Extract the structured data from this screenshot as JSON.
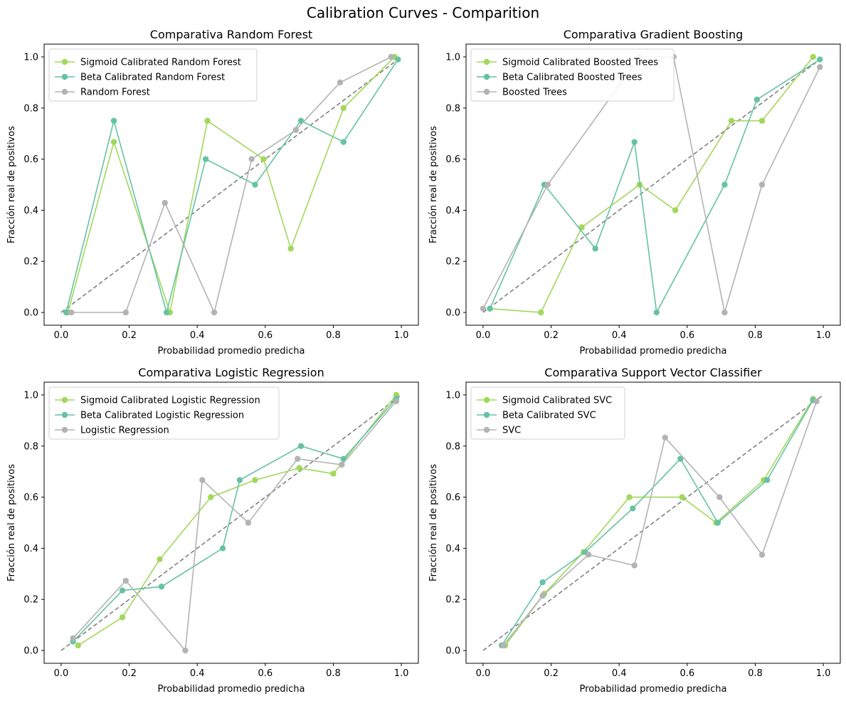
{
  "figure": {
    "title": "Calibration Curves - Comparition"
  },
  "chart_data": [
    {
      "type": "line",
      "title": "Comparativa Random Forest",
      "xlabel": "Probabilidad promedio predicha",
      "ylabel": "Fracción real de positivos",
      "xlim": [
        -0.05,
        1.05
      ],
      "ylim": [
        -0.05,
        1.05
      ],
      "xticks": [
        "0.0",
        "0.2",
        "0.4",
        "0.6",
        "0.8",
        "1.0"
      ],
      "yticks": [
        "0.0",
        "0.2",
        "0.4",
        "0.6",
        "0.8",
        "1.0"
      ],
      "legend": "upper-left",
      "series": [
        {
          "name": "Sigmoid Calibrated Random Forest",
          "color": "#a1d85a",
          "x": [
            0.02,
            0.155,
            0.32,
            0.43,
            0.595,
            0.675,
            0.83,
            0.98
          ],
          "y": [
            0.0,
            0.667,
            0.0,
            0.75,
            0.6,
            0.25,
            0.8,
            1.0
          ]
        },
        {
          "name": "Beta Calibrated Random Forest",
          "color": "#66c2a5",
          "x": [
            0.015,
            0.155,
            0.31,
            0.425,
            0.57,
            0.705,
            0.83,
            0.99
          ],
          "y": [
            0.0,
            0.75,
            0.0,
            0.6,
            0.5,
            0.75,
            0.667,
            0.99
          ]
        },
        {
          "name": "Random Forest",
          "color": "#b3b3b3",
          "x": [
            0.03,
            0.19,
            0.305,
            0.45,
            0.56,
            0.69,
            0.82,
            0.97
          ],
          "y": [
            0.0,
            0.0,
            0.429,
            0.0,
            0.6,
            0.714,
            0.9,
            1.0
          ]
        }
      ]
    },
    {
      "type": "line",
      "title": "Comparativa Gradient Boosting",
      "xlabel": "Probabilidad promedio predicha",
      "ylabel": "Fracción real de positivos",
      "xlim": [
        -0.05,
        1.05
      ],
      "ylim": [
        -0.05,
        1.05
      ],
      "xticks": [
        "0.0",
        "0.2",
        "0.4",
        "0.6",
        "0.8",
        "1.0"
      ],
      "yticks": [
        "0.0",
        "0.2",
        "0.4",
        "0.6",
        "0.8",
        "1.0"
      ],
      "legend": "upper-left",
      "series": [
        {
          "name": "Sigmoid Calibrated Boosted Trees",
          "color": "#a1d85a",
          "x": [
            0.02,
            0.17,
            0.29,
            0.46,
            0.565,
            0.73,
            0.82,
            0.97
          ],
          "y": [
            0.015,
            0.0,
            0.333,
            0.5,
            0.4,
            0.75,
            0.75,
            1.0
          ]
        },
        {
          "name": "Beta Calibrated Boosted Trees",
          "color": "#66c2a5",
          "x": [
            0.02,
            0.18,
            0.33,
            0.445,
            0.51,
            0.71,
            0.805,
            0.99
          ],
          "y": [
            0.015,
            0.5,
            0.25,
            0.667,
            0.0,
            0.5,
            0.833,
            0.99
          ]
        },
        {
          "name": "Boosted Trees",
          "color": "#b3b3b3",
          "x": [
            0.0,
            0.19,
            0.46,
            0.56,
            0.71,
            0.82,
            0.99
          ],
          "y": [
            0.015,
            0.5,
            1.0,
            1.0,
            0.0,
            0.5,
            0.96
          ]
        }
      ]
    },
    {
      "type": "line",
      "title": "Comparativa Logistic Regression",
      "xlabel": "Probabilidad promedio predicha",
      "ylabel": "Fracción real de positivos",
      "xlim": [
        -0.05,
        1.05
      ],
      "ylim": [
        -0.05,
        1.05
      ],
      "xticks": [
        "0.0",
        "0.2",
        "0.4",
        "0.6",
        "0.8",
        "1.0"
      ],
      "yticks": [
        "0.0",
        "0.2",
        "0.4",
        "0.6",
        "0.8",
        "1.0"
      ],
      "legend": "upper-left",
      "series": [
        {
          "name": "Sigmoid Calibrated Logistic Regression",
          "color": "#a1d85a",
          "x": [
            0.05,
            0.18,
            0.29,
            0.44,
            0.57,
            0.7,
            0.8,
            0.985
          ],
          "y": [
            0.02,
            0.13,
            0.357,
            0.6,
            0.667,
            0.714,
            0.692,
            1.0
          ]
        },
        {
          "name": "Beta Calibrated Logistic Regression",
          "color": "#66c2a5",
          "x": [
            0.035,
            0.18,
            0.295,
            0.475,
            0.525,
            0.705,
            0.83,
            0.985
          ],
          "y": [
            0.035,
            0.235,
            0.25,
            0.4,
            0.667,
            0.8,
            0.75,
            0.985
          ]
        },
        {
          "name": "Logistic Regression",
          "color": "#b3b3b3",
          "x": [
            0.035,
            0.19,
            0.365,
            0.415,
            0.55,
            0.695,
            0.825,
            0.985
          ],
          "y": [
            0.048,
            0.273,
            0.0,
            0.667,
            0.5,
            0.75,
            0.727,
            0.975
          ]
        }
      ]
    },
    {
      "type": "line",
      "title": "Comparativa Support Vector Classifier",
      "xlabel": "Probabilidad promedio predicha",
      "ylabel": "Fracción real de positivos",
      "xlim": [
        -0.05,
        1.05
      ],
      "ylim": [
        -0.05,
        1.05
      ],
      "xticks": [
        "0.0",
        "0.2",
        "0.4",
        "0.6",
        "0.8",
        "1.0"
      ],
      "yticks": [
        "0.0",
        "0.2",
        "0.4",
        "0.6",
        "0.8",
        "1.0"
      ],
      "legend": "upper-left",
      "series": [
        {
          "name": "Sigmoid Calibrated SVC",
          "color": "#a1d85a",
          "x": [
            0.065,
            0.18,
            0.295,
            0.43,
            0.585,
            0.685,
            0.825,
            0.97
          ],
          "y": [
            0.02,
            0.222,
            0.385,
            0.6,
            0.6,
            0.5,
            0.667,
            0.985
          ]
        },
        {
          "name": "Beta Calibrated SVC",
          "color": "#66c2a5",
          "x": [
            0.055,
            0.175,
            0.3,
            0.44,
            0.58,
            0.69,
            0.835,
            0.97
          ],
          "y": [
            0.02,
            0.267,
            0.385,
            0.556,
            0.75,
            0.5,
            0.667,
            0.98
          ]
        },
        {
          "name": "SVC",
          "color": "#b3b3b3",
          "x": [
            0.06,
            0.175,
            0.31,
            0.445,
            0.535,
            0.695,
            0.82,
            0.98
          ],
          "y": [
            0.02,
            0.214,
            0.375,
            0.333,
            0.833,
            0.6,
            0.375,
            0.975
          ]
        }
      ]
    }
  ]
}
